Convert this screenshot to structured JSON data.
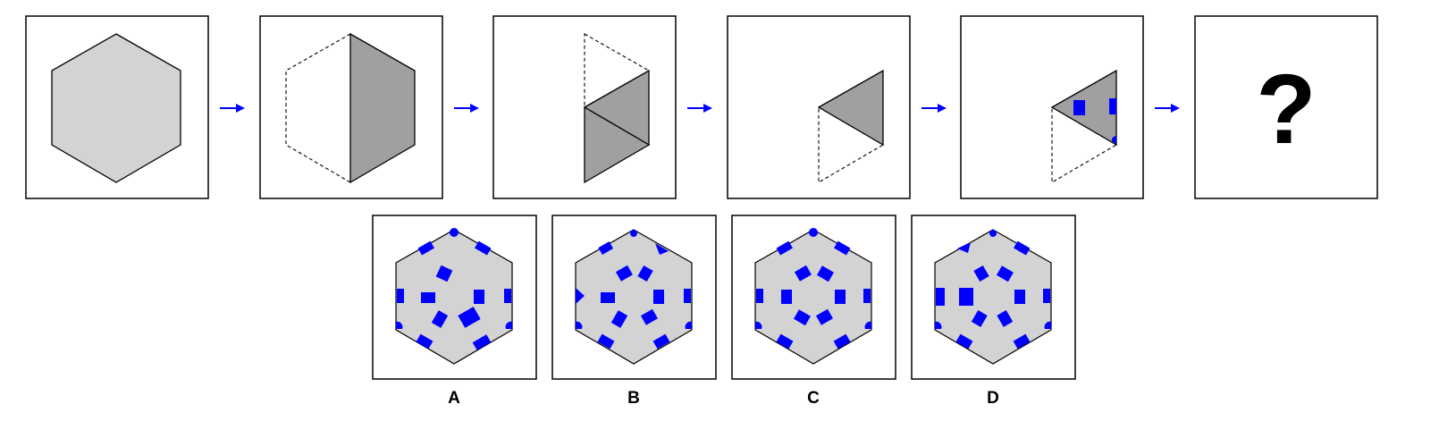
{
  "puzzle": {
    "question_mark": "?",
    "steps": [
      "full-hexagon",
      "fold-left-half-to-right",
      "fold-into-thirds",
      "fold-into-single-triangle",
      "punch-holes",
      "unfold-unknown"
    ],
    "options": [
      {
        "label": "A"
      },
      {
        "label": "B"
      },
      {
        "label": "C"
      },
      {
        "label": "D"
      }
    ],
    "colors": {
      "paper": "#d3d3d3",
      "folded": "#a0a0a0",
      "hole": "#0000ff",
      "arrow": "#0000ff",
      "border": "#000000"
    }
  }
}
